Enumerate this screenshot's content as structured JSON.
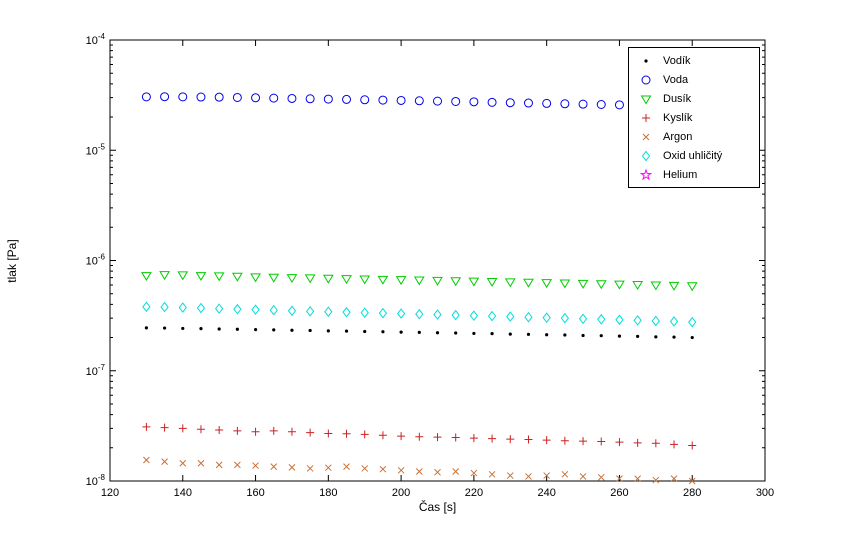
{
  "figure": {
    "background": "#ffffff",
    "axis_color": "#000000"
  },
  "chart_data": {
    "type": "scatter",
    "title": "",
    "xlabel": "Čas [s]",
    "ylabel": "tlak [Pa]",
    "xlim": [
      120,
      300
    ],
    "ylim": [
      1e-08,
      0.0001
    ],
    "yscale": "log",
    "xticks": [
      120,
      140,
      160,
      180,
      200,
      220,
      240,
      260,
      280,
      300
    ],
    "ytick_exponents": [
      -8,
      -7,
      -6,
      -5,
      -4
    ],
    "grid": false,
    "legend_position": "northeast",
    "x": [
      130,
      135,
      140,
      145,
      150,
      155,
      160,
      165,
      170,
      175,
      180,
      185,
      190,
      195,
      200,
      205,
      210,
      215,
      220,
      225,
      230,
      235,
      240,
      245,
      250,
      255,
      260,
      265,
      270,
      275,
      280
    ],
    "series": [
      {
        "name": "Vodík",
        "marker": "point",
        "color": "#000000",
        "values": [
          2.45e-07,
          2.44e-07,
          2.42e-07,
          2.41e-07,
          2.39e-07,
          2.38e-07,
          2.36e-07,
          2.35e-07,
          2.33e-07,
          2.32e-07,
          2.3e-07,
          2.29e-07,
          2.27e-07,
          2.26e-07,
          2.24e-07,
          2.23e-07,
          2.21e-07,
          2.2e-07,
          2.18e-07,
          2.17e-07,
          2.15e-07,
          2.14e-07,
          2.12e-07,
          2.11e-07,
          2.09e-07,
          2.08e-07,
          2.06e-07,
          2.05e-07,
          2.03e-07,
          2.02e-07,
          2e-07
        ]
      },
      {
        "name": "Voda",
        "marker": "circle",
        "color": "#0000ee",
        "values": [
          3.05e-05,
          3.06e-05,
          3.05e-05,
          3.04e-05,
          3.03e-05,
          3.01e-05,
          2.99e-05,
          2.97e-05,
          2.95e-05,
          2.93e-05,
          2.91e-05,
          2.89e-05,
          2.87e-05,
          2.85e-05,
          2.83e-05,
          2.81e-05,
          2.79e-05,
          2.77e-05,
          2.75e-05,
          2.72e-05,
          2.7e-05,
          2.68e-05,
          2.66e-05,
          2.64e-05,
          2.62e-05,
          2.6e-05,
          2.58e-05,
          2.56e-05,
          2.54e-05,
          2.51e-05,
          2.49e-05
        ]
      },
      {
        "name": "Dusík",
        "marker": "triangle-down",
        "color": "#00cc00",
        "values": [
          7.3e-07,
          7.45e-07,
          7.4e-07,
          7.3e-07,
          7.25e-07,
          7.2e-07,
          7.1e-07,
          7.05e-07,
          7e-07,
          6.95e-07,
          6.9e-07,
          6.85e-07,
          6.8e-07,
          6.75e-07,
          6.7e-07,
          6.65e-07,
          6.6e-07,
          6.55e-07,
          6.5e-07,
          6.45e-07,
          6.4e-07,
          6.35e-07,
          6.3e-07,
          6.25e-07,
          6.2e-07,
          6.15e-07,
          6.1e-07,
          6.05e-07,
          6e-07,
          5.95e-07,
          5.9e-07
        ]
      },
      {
        "name": "Kyslík",
        "marker": "plus",
        "color": "#cc2222",
        "values": [
          3.1e-08,
          3.05e-08,
          3e-08,
          2.95e-08,
          2.9e-08,
          2.85e-08,
          2.8e-08,
          2.85e-08,
          2.8e-08,
          2.75e-08,
          2.7e-08,
          2.68e-08,
          2.65e-08,
          2.6e-08,
          2.55e-08,
          2.52e-08,
          2.5e-08,
          2.48e-08,
          2.45e-08,
          2.42e-08,
          2.4e-08,
          2.38e-08,
          2.35e-08,
          2.32e-08,
          2.3e-08,
          2.28e-08,
          2.25e-08,
          2.22e-08,
          2.2e-08,
          2.15e-08,
          2.1e-08
        ]
      },
      {
        "name": "Argon",
        "marker": "x",
        "color": "#c87137",
        "values": [
          1.55e-08,
          1.5e-08,
          1.45e-08,
          1.45e-08,
          1.4e-08,
          1.4e-08,
          1.38e-08,
          1.35e-08,
          1.33e-08,
          1.3e-08,
          1.32e-08,
          1.35e-08,
          1.3e-08,
          1.28e-08,
          1.25e-08,
          1.22e-08,
          1.2e-08,
          1.22e-08,
          1.18e-08,
          1.15e-08,
          1.12e-08,
          1.1e-08,
          1.12e-08,
          1.15e-08,
          1.1e-08,
          1.08e-08,
          1.05e-08,
          1.05e-08,
          1.02e-08,
          1.05e-08,
          1e-08
        ]
      },
      {
        "name": "Oxid uhličitý",
        "marker": "diamond",
        "color": "#00dddd",
        "values": [
          3.8e-07,
          3.78e-07,
          3.74e-07,
          3.7e-07,
          3.66e-07,
          3.62e-07,
          3.58e-07,
          3.54e-07,
          3.5e-07,
          3.46e-07,
          3.43e-07,
          3.4e-07,
          3.36e-07,
          3.33e-07,
          3.3e-07,
          3.26e-07,
          3.23e-07,
          3.2e-07,
          3.16e-07,
          3.13e-07,
          3.1e-07,
          3.06e-07,
          3.03e-07,
          3e-07,
          2.96e-07,
          2.93e-07,
          2.9e-07,
          2.86e-07,
          2.83e-07,
          2.8e-07,
          2.76e-07
        ]
      },
      {
        "name": "Helium",
        "marker": "pentagram",
        "color": "#ff00ff",
        "values": []
      }
    ]
  }
}
